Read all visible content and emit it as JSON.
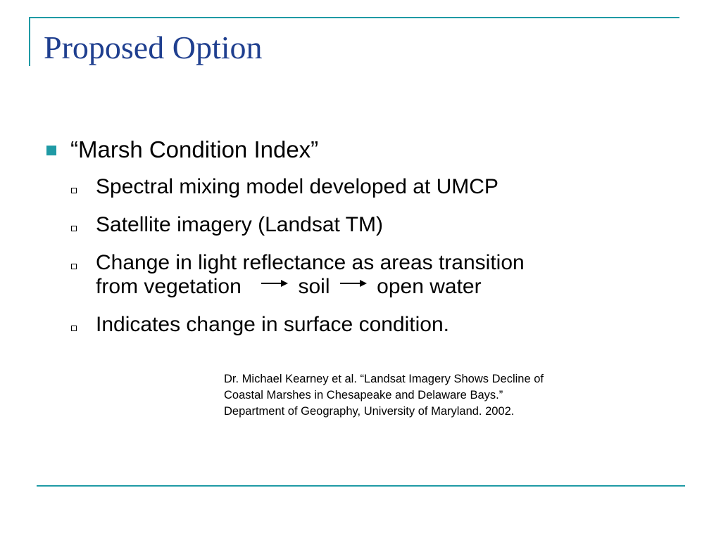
{
  "slide": {
    "title": "Proposed Option"
  },
  "bullet": {
    "text": "“Marsh Condition Index”"
  },
  "sub_items": {
    "item1": "Spectral mixing model developed at UMCP",
    "item2": "Satellite imagery (Landsat TM)",
    "item3_line1": "Change in light reflectance as areas transition",
    "item3_line2_part1": "from vegetation",
    "item3_line2_part2": "soil",
    "item3_line2_part3": "open water",
    "item4": "Indicates change in surface condition."
  },
  "citation": {
    "line1": "Dr. Michael Kearney et al. “Landsat Imagery Shows Decline of",
    "line2": "Coastal Marshes in Chesapeake and Delaware Bays.”",
    "line3": "Department of Geography, University of Maryland. 2002."
  },
  "colors": {
    "accent": "#1f9aa5",
    "title": "#1f3f8f",
    "bullet_square": "#1f9aa5",
    "text": "#000000"
  }
}
